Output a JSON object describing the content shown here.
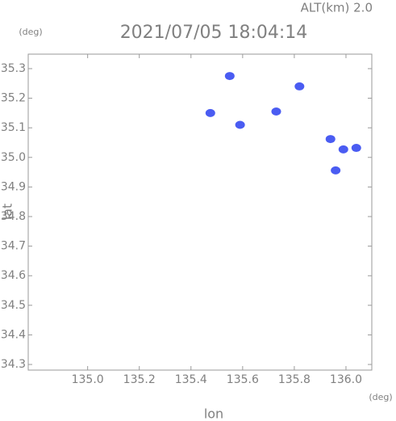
{
  "chart_data": {
    "type": "scatter",
    "title": "2021/07/05 18:04:14",
    "subtitle": "ALT(km) 2.0",
    "y_unit": "(deg)",
    "x_unit": "(deg)",
    "xlabel": "lon",
    "ylabel": "lat",
    "x": [
      135.55,
      135.475,
      135.59,
      135.73,
      135.82,
      135.94,
      135.99,
      136.04,
      135.96
    ],
    "y": [
      35.275,
      35.15,
      35.11,
      35.155,
      35.24,
      35.062,
      35.027,
      35.032,
      34.956
    ],
    "color": "#4a5cf2",
    "xlim": [
      134.77,
      136.1
    ],
    "ylim": [
      34.281,
      35.349
    ],
    "xticks": [
      {
        "value": 135,
        "label": "135.0"
      },
      135.2,
      135.4,
      135.6,
      135.8,
      {
        "value": 136,
        "label": "136.0"
      }
    ],
    "yticks": [
      34.3,
      34.4,
      34.5,
      34.6,
      34.7,
      34.8,
      34.9,
      {
        "value": 35,
        "label": "35.0"
      },
      35.1,
      35.2,
      35.3
    ],
    "grid": false
  }
}
